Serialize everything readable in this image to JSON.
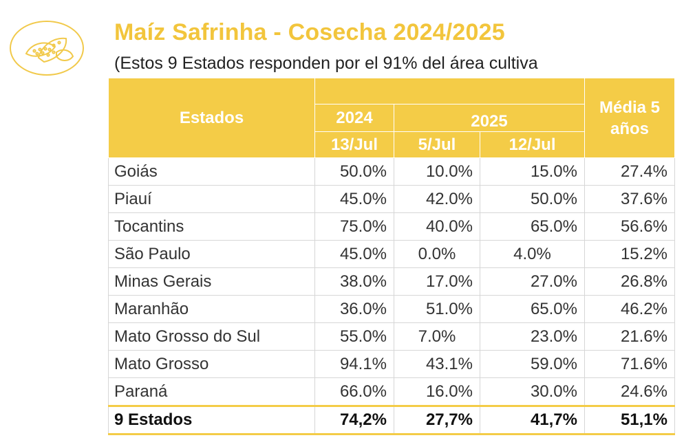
{
  "logo": {
    "icon": "corn-icon",
    "color": "#f1c94a"
  },
  "title": "Maíz Safrinha - Cosecha 2024/2025",
  "subtitle": "(Estos 9 Estados responden por el 91% del área cultiva",
  "table": {
    "header": {
      "estados": "Estados",
      "year_2024": "2024",
      "year_2025": "2025",
      "media": "Média 5 años",
      "date_2024": "13/Jul",
      "date_2025_a": "5/Jul",
      "date_2025_b": "12/Jul"
    },
    "rows": [
      {
        "estado": "Goiás",
        "v2024": "50.0%",
        "v2025a": "10.0%",
        "v2025b": "15.0%",
        "media": "27.4%"
      },
      {
        "estado": "Piauí",
        "v2024": "45.0%",
        "v2025a": "42.0%",
        "v2025b": "50.0%",
        "media": "37.6%"
      },
      {
        "estado": "Tocantins",
        "v2024": "75.0%",
        "v2025a": "40.0%",
        "v2025b": "65.0%",
        "media": "56.6%"
      },
      {
        "estado": "São Paulo",
        "v2024": "45.0%",
        "v2025a": "0.0%",
        "v2025b": "4.0%",
        "media": "15.2%"
      },
      {
        "estado": "Minas Gerais",
        "v2024": "38.0%",
        "v2025a": "17.0%",
        "v2025b": "27.0%",
        "media": "26.8%"
      },
      {
        "estado": "Maranhão",
        "v2024": "36.0%",
        "v2025a": "51.0%",
        "v2025b": "65.0%",
        "media": "46.2%"
      },
      {
        "estado": "Mato Grosso do Sul",
        "v2024": "55.0%",
        "v2025a": "7.0%",
        "v2025b": "23.0%",
        "media": "21.6%"
      },
      {
        "estado": "Mato Grosso",
        "v2024": "94.1%",
        "v2025a": "43.1%",
        "v2025b": "59.0%",
        "media": "71.6%"
      },
      {
        "estado": "Paraná",
        "v2024": "66.0%",
        "v2025a": "16.0%",
        "v2025b": "30.0%",
        "media": "24.6%"
      }
    ],
    "total": {
      "estado": "9 Estados",
      "v2024": "74,2%",
      "v2025a": "27,7%",
      "v2025b": "41,7%",
      "media": "51,1%"
    }
  },
  "colors": {
    "accent": "#f4cc47",
    "title": "#f2c53c"
  }
}
